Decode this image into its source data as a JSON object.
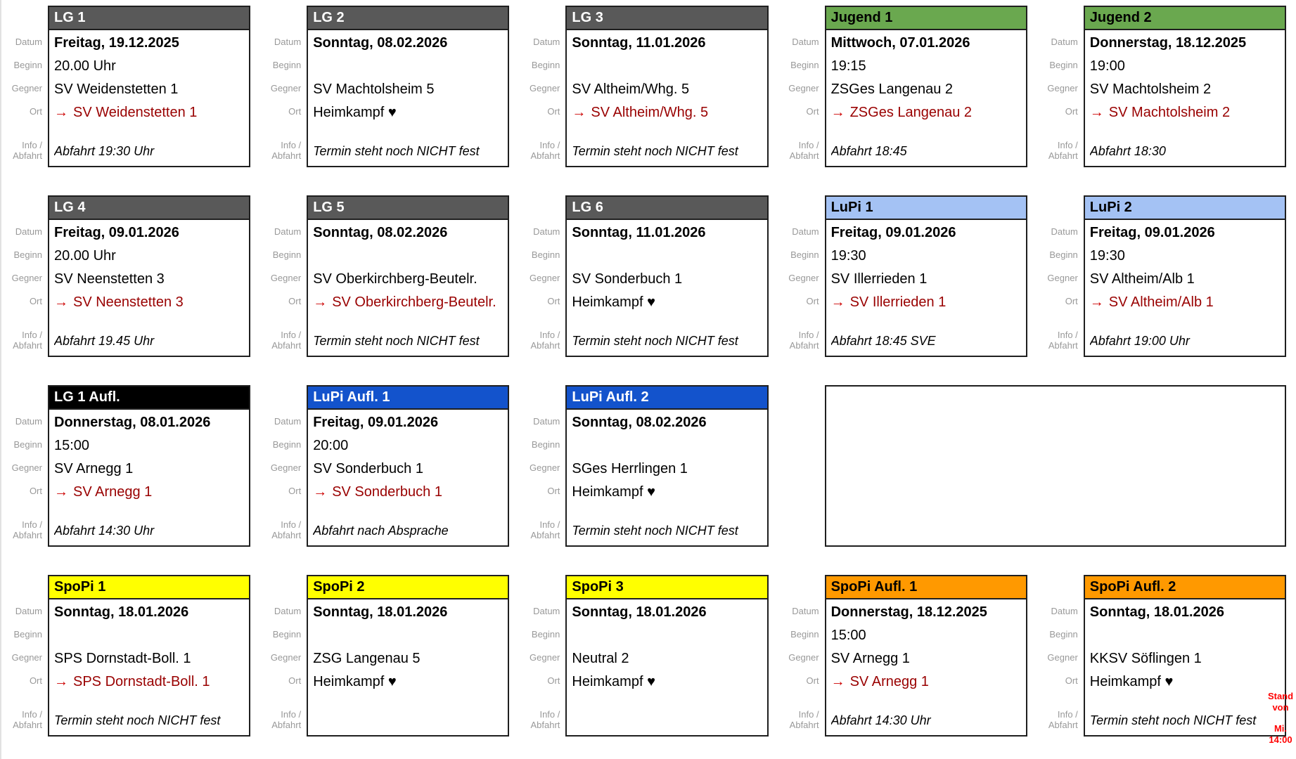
{
  "row_labels": {
    "datum": "Datum",
    "beginn": "Beginn",
    "gegner": "Gegner",
    "ort": "Ort",
    "info_line1": "Info /",
    "info_line2": "Abfahrt"
  },
  "symbols": {
    "away_arrow": "→",
    "home_heart": "♥"
  },
  "colors": {
    "card_border": "#1f1f1f",
    "label_gray": "#999999",
    "away_text": "#990000",
    "away_arrow": "#cc0000",
    "note_red": "#ff0000",
    "themes": {
      "gray": {
        "bg": "#595959",
        "fg": "#ffffff"
      },
      "green": {
        "bg": "#6aa84f",
        "fg": "#000000"
      },
      "lightblue": {
        "bg": "#a4c2f4",
        "fg": "#000000"
      },
      "blue": {
        "bg": "#1353cc",
        "fg": "#ffffff"
      },
      "black": {
        "bg": "#000000",
        "fg": "#ffffff"
      },
      "yellow": {
        "bg": "#ffff00",
        "fg": "#000000"
      },
      "orange": {
        "bg": "#ff9900",
        "fg": "#000000"
      }
    }
  },
  "cards": [
    {
      "row": 1,
      "col": 1,
      "theme": "gray",
      "title": "LG 1",
      "datum": "Freitag, 19.12.2025",
      "beginn": "20.00 Uhr",
      "gegner": "SV Weidenstetten 1",
      "ort": {
        "text": "SV Weidenstetten 1",
        "away": true
      },
      "info": "Abfahrt 19:30 Uhr"
    },
    {
      "row": 1,
      "col": 2,
      "theme": "gray",
      "title": "LG 2",
      "datum": "Sonntag, 08.02.2026",
      "beginn": "",
      "gegner": "SV Machtolsheim 5",
      "ort": {
        "text": "Heimkampf ♥",
        "away": false
      },
      "info": "Termin steht noch NICHT fest"
    },
    {
      "row": 1,
      "col": 3,
      "theme": "gray",
      "title": "LG 3",
      "datum": "Sonntag, 11.01.2026",
      "beginn": "",
      "gegner": "SV Altheim/Whg. 5",
      "ort": {
        "text": "SV Altheim/Whg. 5",
        "away": true
      },
      "info": "Termin steht noch NICHT fest"
    },
    {
      "row": 1,
      "col": 4,
      "theme": "green",
      "title": "Jugend 1",
      "datum": "Mittwoch, 07.01.2026",
      "beginn": "19:15",
      "gegner": "ZSGes Langenau 2",
      "ort": {
        "text": "ZSGes Langenau 2",
        "away": true
      },
      "info": "Abfahrt 18:45"
    },
    {
      "row": 1,
      "col": 5,
      "theme": "green",
      "title": "Jugend 2",
      "datum": "Donnerstag, 18.12.2025",
      "beginn": "19:00",
      "gegner": "SV Machtolsheim 2",
      "ort": {
        "text": "SV Machtolsheim 2",
        "away": true
      },
      "info": "Abfahrt 18:30"
    },
    {
      "row": 2,
      "col": 1,
      "theme": "gray",
      "title": "LG 4",
      "datum": "Freitag, 09.01.2026",
      "beginn": "20.00 Uhr",
      "gegner": "SV Neenstetten 3",
      "ort": {
        "text": "SV Neenstetten 3",
        "away": true
      },
      "info": "Abfahrt 19.45 Uhr"
    },
    {
      "row": 2,
      "col": 2,
      "theme": "gray",
      "title": "LG 5",
      "datum": "Sonntag, 08.02.2026",
      "beginn": "",
      "gegner": "SV Oberkirchberg-Beutelr.",
      "ort": {
        "text": "SV Oberkirchberg-Beutelr.",
        "away": true
      },
      "info": "Termin steht noch NICHT fest"
    },
    {
      "row": 2,
      "col": 3,
      "theme": "gray",
      "title": "LG 6",
      "datum": "Sonntag, 11.01.2026",
      "beginn": "",
      "gegner": "SV Sonderbuch 1",
      "ort": {
        "text": "Heimkampf ♥",
        "away": false
      },
      "info": "Termin steht noch NICHT fest"
    },
    {
      "row": 2,
      "col": 4,
      "theme": "lightblue",
      "title": "LuPi 1",
      "datum": "Freitag, 09.01.2026",
      "beginn": "19:30",
      "gegner": "SV Illerrieden 1",
      "ort": {
        "text": "SV Illerrieden 1",
        "away": true
      },
      "info": "Abfahrt 18:45 SVE"
    },
    {
      "row": 2,
      "col": 5,
      "theme": "lightblue",
      "title": "LuPi 2",
      "datum": "Freitag, 09.01.2026",
      "beginn": "19:30",
      "gegner": "SV Altheim/Alb 1",
      "ort": {
        "text": "SV Altheim/Alb 1",
        "away": true
      },
      "info": "Abfahrt 19:00 Uhr"
    },
    {
      "row": 3,
      "col": 1,
      "theme": "black",
      "title": "LG 1 Aufl.",
      "datum": "Donnerstag, 08.01.2026",
      "beginn": "15:00",
      "gegner": "SV Arnegg 1",
      "ort": {
        "text": "SV Arnegg 1",
        "away": true
      },
      "info": "Abfahrt 14:30 Uhr"
    },
    {
      "row": 3,
      "col": 2,
      "theme": "blue",
      "title": "LuPi Aufl. 1",
      "datum": "Freitag, 09.01.2026",
      "beginn": "20:00",
      "gegner": "SV Sonderbuch 1",
      "ort": {
        "text": "SV Sonderbuch 1",
        "away": true
      },
      "info": "Abfahrt nach Absprache"
    },
    {
      "row": 3,
      "col": 3,
      "theme": "blue",
      "title": "LuPi Aufl. 2",
      "datum": "Sonntag, 08.02.2026",
      "beginn": "",
      "gegner": "SGes Herrlingen 1",
      "ort": {
        "text": "Heimkampf ♥",
        "away": false
      },
      "info": "Termin steht noch NICHT fest"
    },
    {
      "row": 4,
      "col": 1,
      "theme": "yellow",
      "title": "SpoPi 1",
      "datum": "Sonntag, 18.01.2026",
      "beginn": "",
      "gegner": "SPS Dornstadt-Boll. 1",
      "ort": {
        "text": "SPS Dornstadt-Boll. 1",
        "away": true
      },
      "info": "Termin steht noch NICHT fest"
    },
    {
      "row": 4,
      "col": 2,
      "theme": "yellow",
      "title": "SpoPi 2",
      "datum": "Sonntag, 18.01.2026",
      "beginn": "",
      "gegner": "ZSG Langenau 5",
      "ort": {
        "text": "Heimkampf ♥",
        "away": false
      },
      "info": ""
    },
    {
      "row": 4,
      "col": 3,
      "theme": "yellow",
      "title": "SpoPi 3",
      "datum": "Sonntag, 18.01.2026",
      "beginn": "",
      "gegner": "Neutral 2",
      "ort": {
        "text": "Heimkampf ♥",
        "away": false
      },
      "info": ""
    },
    {
      "row": 4,
      "col": 4,
      "theme": "orange",
      "title": "SpoPi Aufl. 1",
      "datum": "Donnerstag, 18.12.2025",
      "beginn": "15:00",
      "gegner": "SV Arnegg 1",
      "ort": {
        "text": "SV Arnegg 1",
        "away": true
      },
      "info": "Abfahrt 14:30 Uhr"
    },
    {
      "row": 4,
      "col": 5,
      "theme": "orange",
      "title": "SpoPi Aufl. 2",
      "datum": "Sonntag, 18.01.2026",
      "beginn": "",
      "gegner": "KKSV Söflingen 1",
      "ort": {
        "text": "Heimkampf ♥",
        "away": false
      },
      "info": "Termin steht noch NICHT fest"
    }
  ],
  "empty_cell": {
    "row": 3,
    "col": 4,
    "span": 2
  },
  "stand_note": {
    "lines": [
      "Stand",
      "von",
      "",
      "Mi.",
      "14:00"
    ]
  }
}
